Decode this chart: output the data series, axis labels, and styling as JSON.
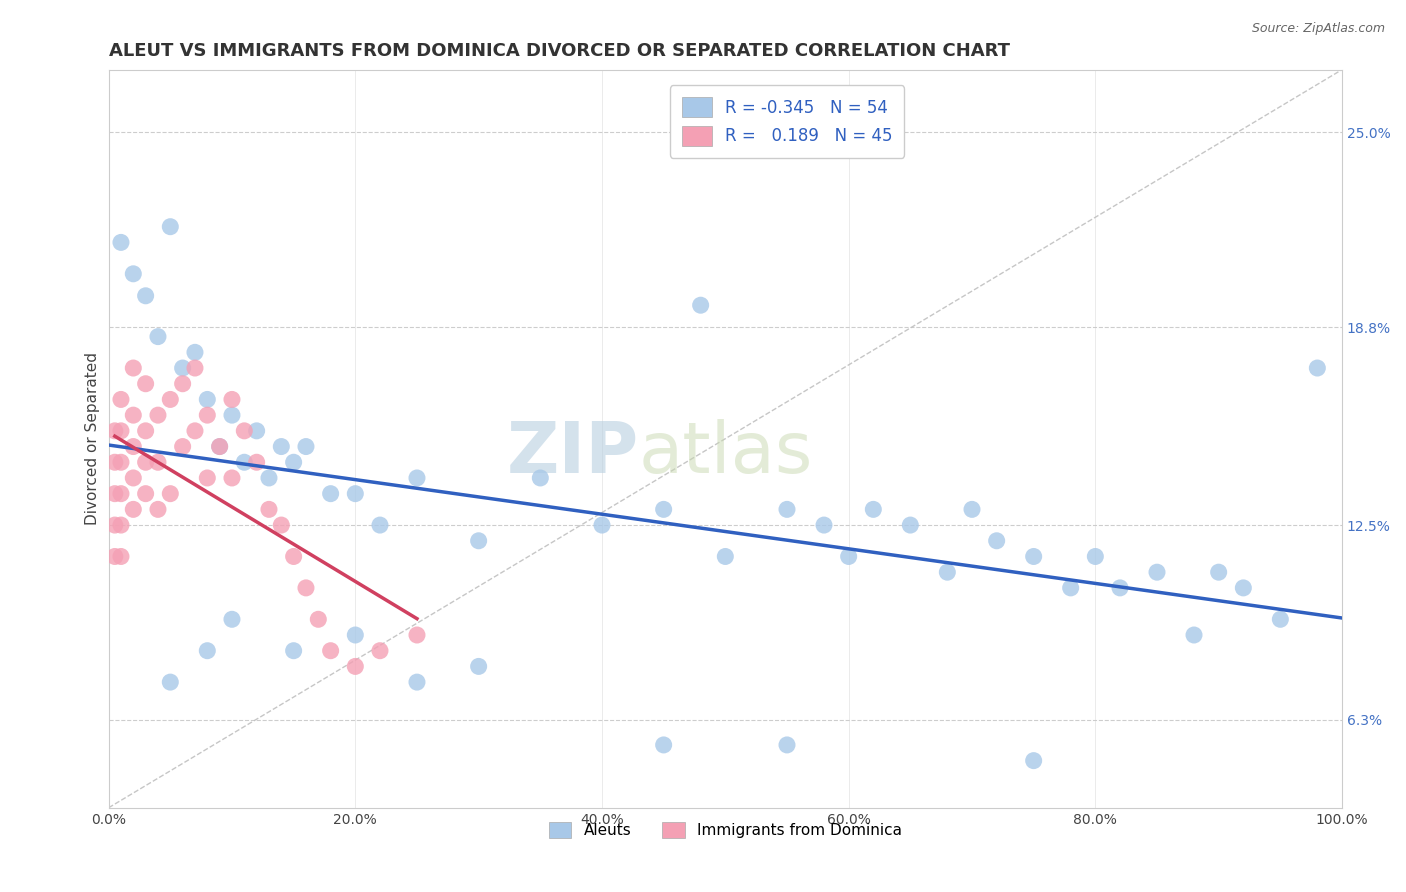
{
  "title": "ALEUT VS IMMIGRANTS FROM DOMINICA DIVORCED OR SEPARATED CORRELATION CHART",
  "source": "Source: ZipAtlas.com",
  "ylabel": "Divorced or Separated",
  "xmin": 0.0,
  "xmax": 100.0,
  "ymin": 3.5,
  "ymax": 27.0,
  "yticks": [
    6.3,
    12.5,
    18.8,
    25.0
  ],
  "ytick_labels": [
    "6.3%",
    "12.5%",
    "18.8%",
    "25.0%"
  ],
  "xticks": [
    0.0,
    20.0,
    40.0,
    60.0,
    80.0,
    100.0
  ],
  "xtick_labels": [
    "0.0%",
    "20.0%",
    "40.0%",
    "60.0%",
    "80.0%",
    "100.0%"
  ],
  "blue_R": -0.345,
  "blue_N": 54,
  "pink_R": 0.189,
  "pink_N": 45,
  "blue_color": "#a8c8e8",
  "pink_color": "#f4a0b4",
  "blue_trend_color": "#3060c0",
  "pink_trend_color": "#d04060",
  "background_color": "#ffffff",
  "grid_color": "#c8c8c8",
  "title_fontsize": 13,
  "axis_label_fontsize": 11,
  "tick_fontsize": 10,
  "blue_scatter_x": [
    1,
    2,
    3,
    4,
    5,
    6,
    7,
    8,
    9,
    10,
    11,
    12,
    13,
    14,
    15,
    16,
    18,
    20,
    22,
    25,
    30,
    35,
    40,
    45,
    48,
    50,
    55,
    58,
    60,
    62,
    65,
    68,
    70,
    72,
    75,
    78,
    80,
    82,
    85,
    88,
    90,
    92,
    95,
    98,
    5,
    8,
    10,
    15,
    20,
    25,
    30,
    45,
    55,
    75
  ],
  "blue_scatter_y": [
    21.5,
    20.5,
    19.8,
    18.5,
    22.0,
    17.5,
    18.0,
    16.5,
    15.0,
    16.0,
    14.5,
    15.5,
    14.0,
    15.0,
    14.5,
    15.0,
    13.5,
    13.5,
    12.5,
    14.0,
    12.0,
    14.0,
    12.5,
    13.0,
    19.5,
    11.5,
    13.0,
    12.5,
    11.5,
    13.0,
    12.5,
    11.0,
    13.0,
    12.0,
    11.5,
    10.5,
    11.5,
    10.5,
    11.0,
    9.0,
    11.0,
    10.5,
    9.5,
    17.5,
    7.5,
    8.5,
    9.5,
    8.5,
    9.0,
    7.5,
    8.0,
    5.5,
    5.5,
    5.0
  ],
  "pink_scatter_x": [
    0.5,
    0.5,
    0.5,
    0.5,
    0.5,
    1,
    1,
    1,
    1,
    1,
    1,
    2,
    2,
    2,
    2,
    2,
    3,
    3,
    3,
    3,
    4,
    4,
    4,
    5,
    5,
    6,
    6,
    7,
    7,
    8,
    8,
    9,
    10,
    10,
    11,
    12,
    13,
    14,
    15,
    16,
    17,
    18,
    20,
    22,
    25
  ],
  "pink_scatter_y": [
    15.5,
    14.5,
    13.5,
    12.5,
    11.5,
    16.5,
    15.5,
    14.5,
    13.5,
    12.5,
    11.5,
    17.5,
    16.0,
    15.0,
    14.0,
    13.0,
    17.0,
    15.5,
    14.5,
    13.5,
    16.0,
    14.5,
    13.0,
    16.5,
    13.5,
    17.0,
    15.0,
    17.5,
    15.5,
    16.0,
    14.0,
    15.0,
    16.5,
    14.0,
    15.5,
    14.5,
    13.0,
    12.5,
    11.5,
    10.5,
    9.5,
    8.5,
    8.0,
    8.5,
    9.0
  ],
  "watermark_top": "ZIP",
  "watermark_bottom": "atlas",
  "watermark_color": "#c8d8e8"
}
